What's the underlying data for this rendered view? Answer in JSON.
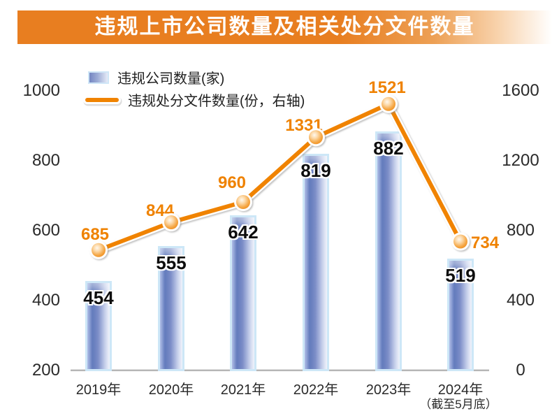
{
  "title": "违规上市公司数量及相关处分文件数量",
  "legend": {
    "bar_label": "违规公司数量(家)",
    "line_label": "违规处分文件数量(份，右轴)"
  },
  "chart_data": {
    "type": "bar",
    "subtype": "bar+line combo, line on secondary axis",
    "title": "违规上市公司数量及相关处分文件数量",
    "categories": [
      "2019年",
      "2020年",
      "2021年",
      "2022年",
      "2023年",
      "2024年"
    ],
    "category_notes": [
      "",
      "",
      "",
      "",
      "",
      "（截至5月底）"
    ],
    "series": [
      {
        "name": "违规公司数量(家)",
        "type": "bar",
        "axis": "left",
        "values": [
          454,
          555,
          642,
          819,
          882,
          519
        ]
      },
      {
        "name": "违规处分文件数量(份，右轴)",
        "type": "line",
        "axis": "right",
        "values": [
          685,
          844,
          960,
          1331,
          1521,
          734
        ]
      }
    ],
    "left_axis": {
      "min": 200,
      "max": 1000,
      "ticks": [
        1000,
        800,
        600,
        400,
        200
      ]
    },
    "right_axis": {
      "min": 0,
      "max": 1600,
      "ticks": [
        1600,
        1200,
        800,
        400,
        0
      ]
    },
    "grid": false,
    "legend_position": "top-left"
  },
  "colors": {
    "title_bar_orange": "#e87e20",
    "line_orange": "#f08300",
    "label_orange": "#ef8200",
    "bar_fill_dark": "#5f78bb",
    "bar_fill_light": "#ecf0fa",
    "bar_border_blue": "#cde7f7",
    "axis_text": "#2a2a2a",
    "axis_line_gray": "#9e9e9e"
  }
}
